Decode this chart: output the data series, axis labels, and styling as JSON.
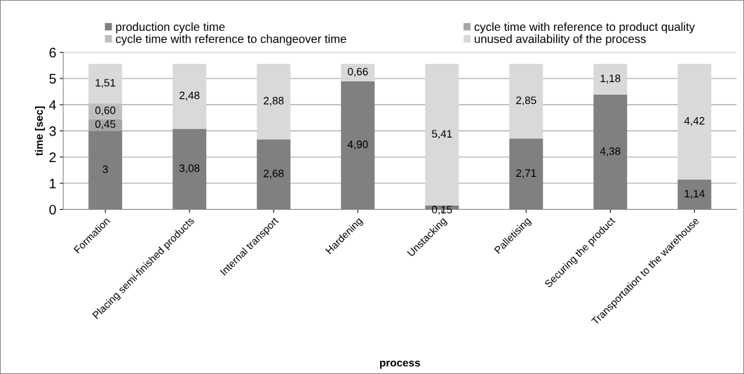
{
  "chart_data": {
    "type": "bar",
    "stacked": true,
    "xlabel": "process",
    "ylabel": "time [sec]",
    "categories": [
      "Formation",
      "Placing semi-finished products",
      "Internal transport",
      "Hardening",
      "Unstacking",
      "Palletising",
      "Securing the product",
      "Transportation to the warehouse"
    ],
    "series": [
      {
        "name": "production cycle time",
        "color": "#808080",
        "values": [
          3,
          3.08,
          2.68,
          4.9,
          0.15,
          2.71,
          4.38,
          1.14
        ],
        "value_labels": [
          "3",
          "3,08",
          "2,68",
          "4,90",
          "0,15",
          "2,71",
          "4,38",
          "1,14"
        ]
      },
      {
        "name": "cycle time with reference to product quality",
        "color": "#a6a6a6",
        "values": [
          0.45,
          null,
          null,
          null,
          null,
          null,
          null,
          null
        ],
        "value_labels": [
          "0,45",
          null,
          null,
          null,
          null,
          null,
          null,
          null
        ]
      },
      {
        "name": "cycle time with reference to changeover time",
        "color": "#bfbfbf",
        "values": [
          0.6,
          null,
          null,
          null,
          null,
          null,
          null,
          null
        ],
        "value_labels": [
          "0,60",
          null,
          null,
          null,
          null,
          null,
          null,
          null
        ]
      },
      {
        "name": "unused availability of the process",
        "color": "#d9d9d9",
        "values": [
          1.51,
          2.48,
          2.88,
          0.66,
          5.41,
          2.85,
          1.18,
          4.42
        ],
        "value_labels": [
          "1,51",
          "2,48",
          "2,88",
          "0,66",
          "5,41",
          "2,85",
          "1,18",
          "4,42"
        ]
      }
    ],
    "ylim": [
      0,
      6
    ],
    "yticks": [
      0,
      1,
      2,
      3,
      4,
      5,
      6
    ],
    "grid": "y",
    "legend": "top"
  }
}
